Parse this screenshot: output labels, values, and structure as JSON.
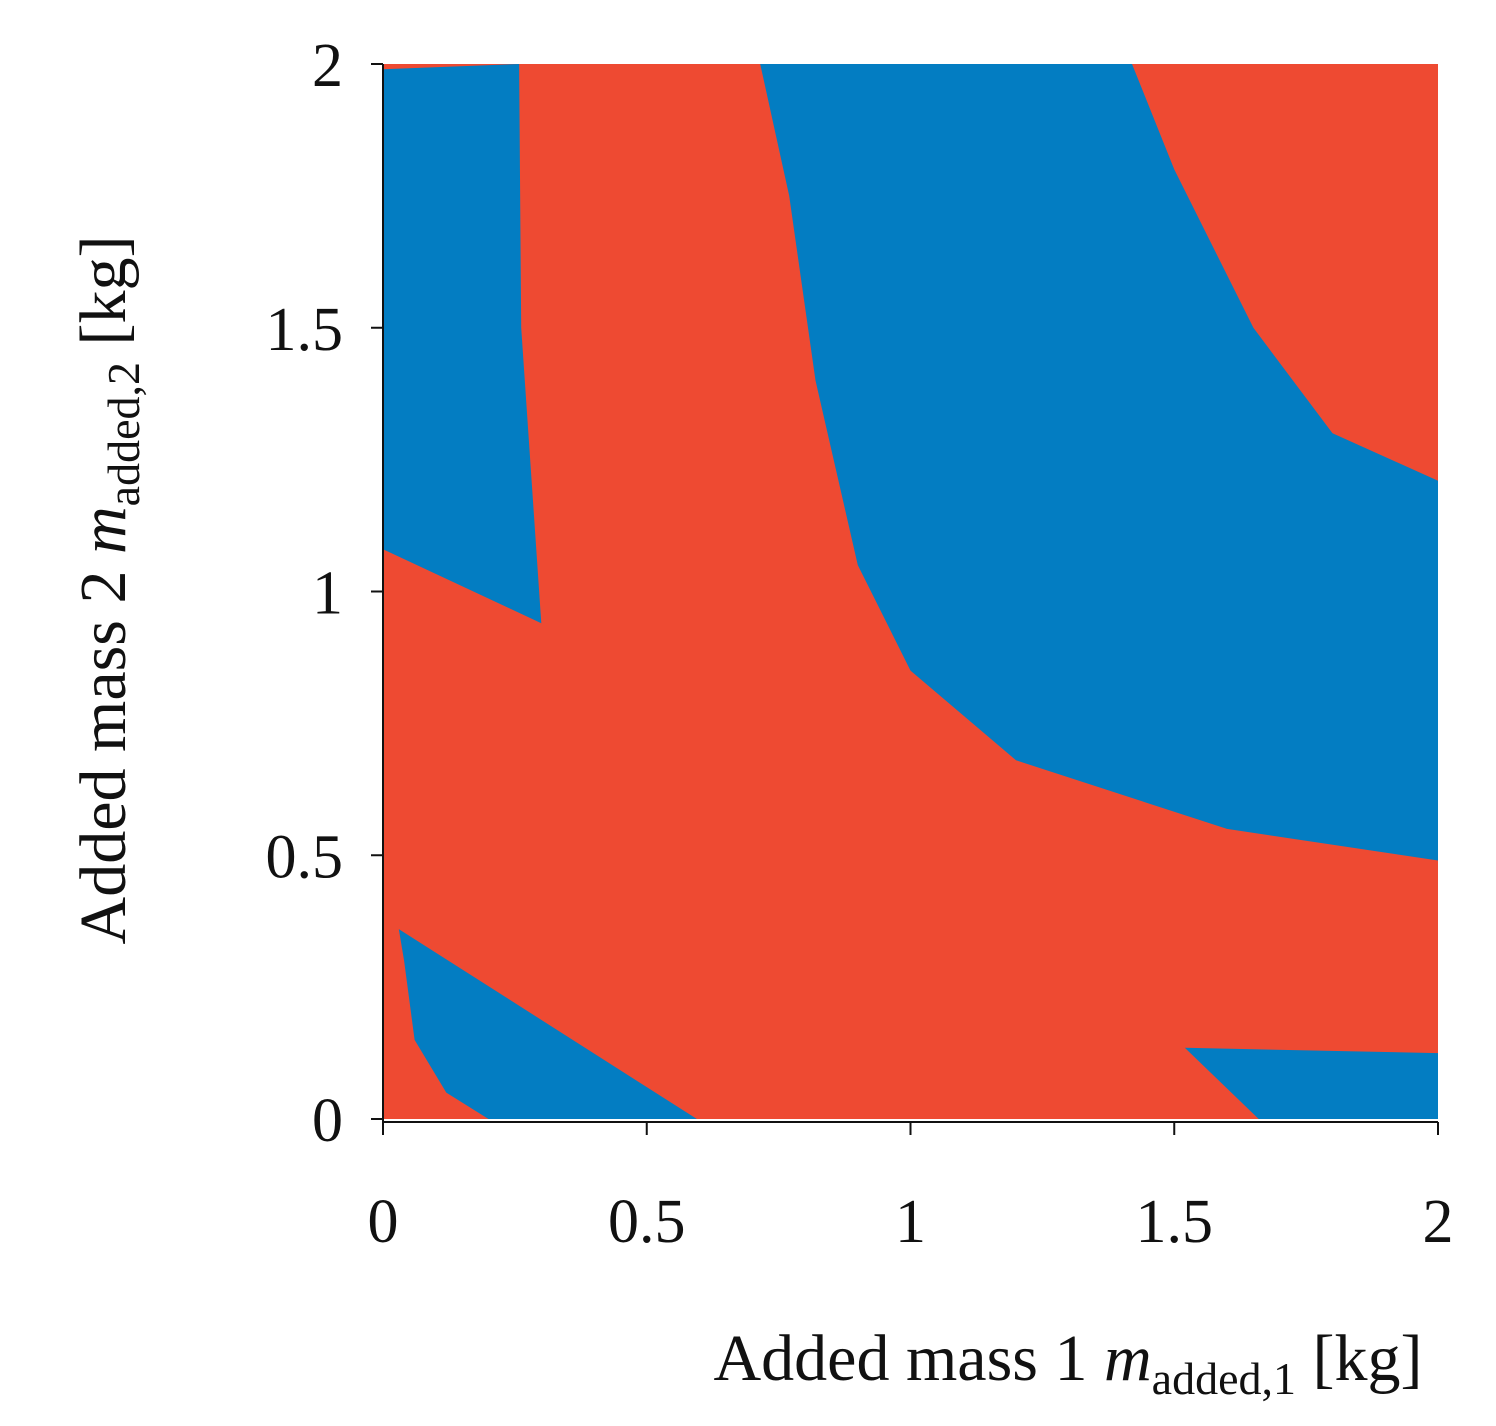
{
  "chart_data": {
    "type": "region-map",
    "title": "",
    "xlabel": {
      "prefix": "Added mass 1 ",
      "symbol": "m",
      "subscript": "added,1",
      "suffix": " [kg]"
    },
    "ylabel": {
      "prefix": "Added mass 2 ",
      "symbol": "m",
      "subscript": "added,2",
      "suffix": " [kg]"
    },
    "xlim": [
      0,
      2
    ],
    "ylim": [
      0,
      2
    ],
    "xticks": [
      "0",
      "0.5",
      "1",
      "1.5",
      "2"
    ],
    "yticks": [
      "0",
      "0.5",
      "1",
      "1.5",
      "2"
    ],
    "grid": false,
    "colors": {
      "background_region": "#ee4a32",
      "region": "#037dc2"
    },
    "regions": [
      {
        "name": "region-top-left",
        "color": "#037dc2",
        "points": [
          [
            0,
            1.99
          ],
          [
            0.258,
            2
          ],
          [
            0.262,
            1.5
          ],
          [
            0.3,
            0.94
          ],
          [
            0.0,
            1.08
          ]
        ]
      },
      {
        "name": "region-center-right",
        "color": "#037dc2",
        "points": [
          [
            0.715,
            2
          ],
          [
            1.42,
            2
          ],
          [
            1.5,
            1.8
          ],
          [
            1.65,
            1.5
          ],
          [
            1.8,
            1.3
          ],
          [
            2.0,
            1.21
          ],
          [
            2.0,
            0.49
          ],
          [
            1.6,
            0.55
          ],
          [
            1.2,
            0.68
          ],
          [
            1.0,
            0.85
          ],
          [
            0.9,
            1.05
          ],
          [
            0.82,
            1.4
          ],
          [
            0.77,
            1.75
          ]
        ]
      },
      {
        "name": "region-bottom-left",
        "color": "#037dc2",
        "points": [
          [
            0.03,
            0.36
          ],
          [
            0.595,
            0
          ],
          [
            0.2,
            0
          ],
          [
            0.12,
            0.05
          ],
          [
            0.06,
            0.15
          ],
          [
            0.04,
            0.3
          ]
        ]
      },
      {
        "name": "region-bottom-right",
        "color": "#037dc2",
        "points": [
          [
            1.52,
            0.135
          ],
          [
            2.0,
            0.125
          ],
          [
            2.0,
            0
          ],
          [
            1.66,
            0
          ]
        ]
      }
    ]
  }
}
